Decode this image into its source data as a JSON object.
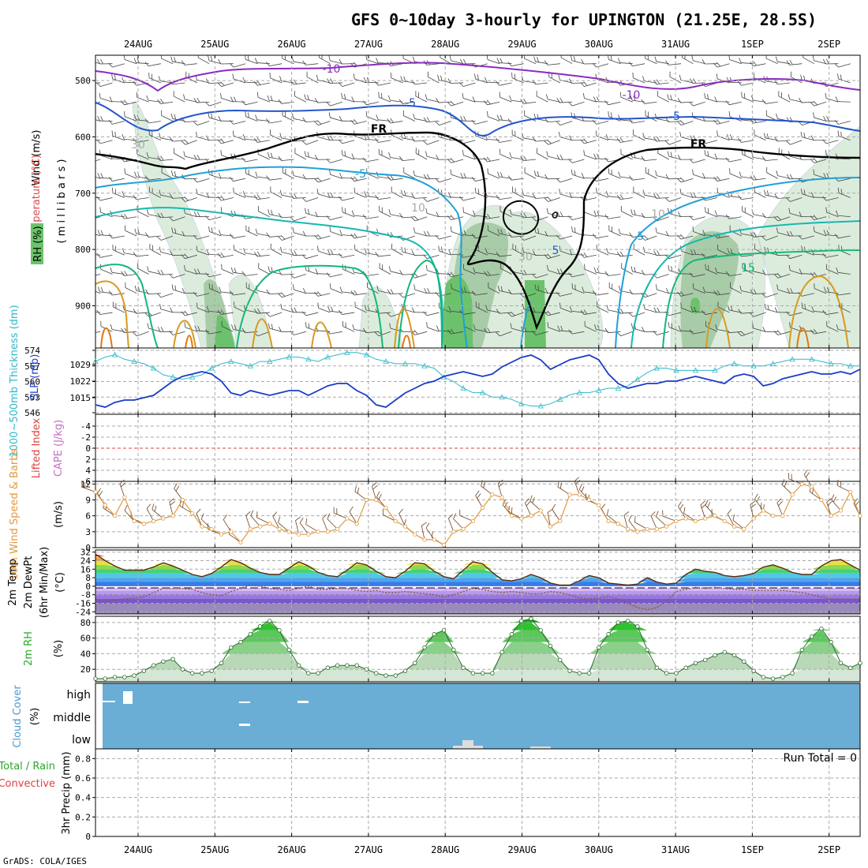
{
  "title": "GFS 0~10day 3-hourly for UPINGTON (21.25E, 28.5S)",
  "credit": "GrADS: COLA/IGES",
  "dates": [
    "24AUG",
    "25AUG",
    "26AUG",
    "27AUG",
    "28AUG",
    "29AUG",
    "30AUG",
    "31AUG",
    "1SEP",
    "2SEP"
  ],
  "colors": {
    "temp_minus10": "#8a2bbf",
    "temp_minus5": "#2255cc",
    "temp_5": "#1fa0d8",
    "temp_10": "#14b8b0",
    "temp_15": "#10b87a",
    "temp_20": "#d89a20",
    "temp_25": "#e07a10",
    "freezing": "#000000",
    "rh_dark": "#60a860",
    "rh_light": "#cfe6cf",
    "slp": "#1a3cc8",
    "thickness": "#30b8c8",
    "wind": "#e09a40",
    "temp2m": "#7a3010",
    "dewpt": "#8a5a40",
    "rh2m": "#3aa83a",
    "cloud": "#6aaed6",
    "lifted": "#e04040"
  },
  "chart_data": [
    {
      "type": "heatmap",
      "panel": "upper-air",
      "ylabel_wind": "Wind (m/s)",
      "ylabel_temp": "Temperature (°C)",
      "ylabel_rh": "RH (%)",
      "ylabel_p": "( m i l l i b a r s )",
      "y_ticks": [
        500,
        600,
        700,
        800,
        900
      ],
      "ylim": [
        975,
        455
      ],
      "contour_labels": [
        "-10",
        "-10",
        "-5",
        "-5",
        "FR",
        "FR",
        "-5",
        "5",
        "5",
        "15",
        "10",
        "10",
        "30",
        "30"
      ]
    },
    {
      "type": "line",
      "panel": "slp-thickness",
      "ylabel_thk": "1000~500mb Thickness (dm)",
      "ylabel_slp": "SLP (mb)",
      "thk_ticks": [
        574,
        567,
        560,
        553,
        546
      ],
      "slp_ticks": [
        1029,
        1022,
        1015
      ],
      "slp_ylim": [
        1008,
        1036
      ],
      "x_steps": [
        0,
        4,
        8,
        12,
        16,
        20,
        24,
        28,
        32,
        36,
        40,
        44,
        48,
        52,
        56,
        60,
        64,
        68,
        72,
        76,
        80,
        84,
        88,
        92,
        96,
        100,
        104,
        108,
        112,
        116,
        120,
        124,
        128,
        132,
        136,
        140,
        144,
        148,
        152,
        156,
        160,
        164,
        168,
        172,
        176,
        180,
        184,
        188,
        192,
        196,
        200,
        204,
        208,
        212,
        216,
        220,
        224,
        228,
        232,
        236,
        240,
        244,
        248,
        252,
        256,
        260,
        264,
        268,
        272,
        276,
        280,
        284,
        288,
        292,
        296,
        300,
        304,
        308,
        312,
        316
      ],
      "slp": [
        1012,
        1011,
        1013,
        1014,
        1014,
        1015,
        1016,
        1019,
        1022,
        1024,
        1025,
        1026,
        1025,
        1022,
        1017,
        1016,
        1018,
        1017,
        1016,
        1017,
        1018,
        1018,
        1016,
        1018,
        1020,
        1021,
        1021,
        1018,
        1016,
        1012,
        1011,
        1014,
        1017,
        1019,
        1021,
        1022,
        1024,
        1025,
        1026,
        1025,
        1024,
        1025,
        1028,
        1030,
        1032,
        1033,
        1031,
        1027,
        1029,
        1031,
        1032,
        1033,
        1031,
        1025,
        1021,
        1019,
        1020,
        1021,
        1021,
        1022,
        1022,
        1023,
        1024,
        1023,
        1022,
        1021,
        1024,
        1025,
        1024,
        1020,
        1021,
        1023,
        1024,
        1025,
        1026,
        1025,
        1025,
        1026,
        1025,
        1027
      ],
      "thk": [
        569,
        571,
        572,
        570,
        569,
        568,
        566,
        563,
        562,
        561,
        562,
        563,
        566,
        568,
        569,
        568,
        567,
        569,
        569,
        570,
        571,
        571,
        570,
        569,
        571,
        572,
        573,
        573,
        572,
        570,
        569,
        568,
        568,
        568,
        567,
        566,
        562,
        560,
        557,
        555,
        555,
        553,
        553,
        552,
        550,
        549,
        549,
        550,
        552,
        554,
        555,
        555,
        556,
        557,
        557,
        558,
        561,
        564,
        566,
        566,
        565,
        565,
        565,
        565,
        565,
        567,
        568,
        567,
        567,
        567,
        568,
        569,
        570,
        570,
        570,
        569,
        568,
        568,
        567,
        567
      ]
    },
    {
      "type": "line",
      "panel": "cape-li",
      "ylabel_li": "Lifted Index",
      "ylabel_cape": "CAPE (J/kg)",
      "li_ticks": [
        "-4",
        "-2",
        "0",
        "2",
        "4",
        "6"
      ]
    },
    {
      "type": "line",
      "panel": "10m-wind",
      "ylabel": "10m Wind Speed & Barbs",
      "unit": "(m/s)",
      "y_ticks": [
        0,
        3,
        6,
        9,
        12
      ],
      "ylim": [
        0,
        12.5
      ],
      "values": [
        10.5,
        8,
        6,
        9.5,
        5,
        4.5,
        5,
        5.5,
        6,
        9,
        6.5,
        4,
        3.5,
        2.5,
        3,
        1,
        3.5,
        4,
        4.5,
        3.5,
        3,
        2.5,
        2.5,
        3,
        3,
        3.5,
        5.5,
        4.5,
        9,
        9,
        7.5,
        5,
        4,
        2.5,
        1.5,
        1.5,
        0.5,
        3,
        3.5,
        5,
        7.5,
        10,
        9.5,
        6,
        5.5,
        6,
        7,
        4,
        5,
        10,
        10,
        9,
        8,
        5,
        4.5,
        3.5,
        3,
        3.5,
        3.5,
        4,
        5,
        5.5,
        5,
        5.5,
        6,
        5,
        4,
        3.5,
        5.5,
        7,
        6,
        6,
        10,
        12,
        11.5,
        9,
        6,
        7,
        10.5,
        6
      ]
    },
    {
      "type": "area",
      "panel": "2m-temp",
      "ylabel1": "2m Temp",
      "ylabel2": "2m DewPt",
      "ylabel3": "(6hr Min/Max)",
      "unit": "(°C)",
      "y_ticks": [
        "32",
        "24",
        "16",
        "8",
        "0",
        "-8",
        "-16",
        "-24"
      ],
      "ylim": [
        -26,
        34
      ],
      "temp": [
        30,
        24,
        19,
        15,
        15,
        15,
        18,
        22,
        19,
        15,
        11,
        9,
        12,
        18,
        25,
        22,
        17,
        13,
        11,
        11,
        17,
        23,
        19,
        13,
        10,
        9,
        15,
        22,
        20,
        14,
        9,
        8,
        14,
        22,
        21,
        14,
        9,
        7,
        15,
        23,
        21,
        13,
        6,
        5,
        7,
        11,
        8,
        3,
        1,
        1,
        5,
        10,
        8,
        3,
        2,
        1,
        2,
        8,
        4,
        2,
        3,
        11,
        16,
        14,
        13,
        10,
        9,
        10,
        12,
        18,
        20,
        17,
        13,
        11,
        11,
        19,
        24,
        25,
        20,
        15
      ],
      "dewpt": [
        -14,
        -14,
        -13,
        -12,
        -11,
        -10,
        -6,
        -2,
        -2,
        -2,
        -3,
        -6,
        -8,
        -9,
        -5,
        -2,
        1,
        0,
        -2,
        -3,
        -4,
        -2,
        0,
        -3,
        -3,
        -2,
        -2,
        -4,
        -5,
        -4,
        -6,
        -6,
        -5,
        -6,
        -7,
        -8,
        -10,
        -8,
        -5,
        -2,
        -3,
        -5,
        -6,
        -5,
        -6,
        -7,
        -7,
        -5,
        -6,
        -8,
        -11,
        -12,
        -11,
        -10,
        -12,
        -16,
        -20,
        -22,
        -20,
        -14,
        -5,
        -3,
        -1,
        -2,
        -1,
        -2,
        -3,
        -3,
        -4,
        -4,
        -4,
        -4,
        -5,
        -6,
        -8,
        -10,
        -12,
        -12,
        -12,
        -12
      ]
    },
    {
      "type": "area",
      "panel": "2m-rh",
      "ylabel": "2m RH",
      "unit": "(%)",
      "y_ticks": [
        20,
        40,
        60,
        80
      ],
      "ylim": [
        4,
        88
      ],
      "values": [
        8,
        8,
        10,
        10,
        12,
        18,
        25,
        30,
        33,
        20,
        15,
        15,
        18,
        28,
        48,
        55,
        65,
        75,
        82,
        70,
        45,
        25,
        15,
        15,
        22,
        25,
        25,
        25,
        20,
        15,
        12,
        12,
        18,
        28,
        48,
        65,
        70,
        45,
        22,
        15,
        15,
        15,
        42,
        65,
        82,
        85,
        70,
        50,
        32,
        18,
        15,
        15,
        48,
        65,
        80,
        82,
        75,
        45,
        22,
        15,
        15,
        22,
        28,
        32,
        38,
        42,
        38,
        30,
        18,
        10,
        8,
        10,
        15,
        45,
        62,
        72,
        55,
        28,
        22,
        28
      ]
    },
    {
      "type": "bar",
      "panel": "cloud-cover",
      "ylabel": "Cloud Cover",
      "unit": "(%)",
      "y_ticks": [
        "high",
        "middle",
        "low"
      ]
    },
    {
      "type": "bar",
      "panel": "precip",
      "ylabel1": "Total / Rain",
      "ylabel2": "Convective",
      "ylabel3": "3hr Precip (mm)",
      "run_total": "Run Total = 0",
      "y_ticks": [
        "0.8",
        "0.6",
        "0.4",
        "0.2",
        "0"
      ],
      "ylim": [
        0,
        0.9
      ]
    }
  ]
}
